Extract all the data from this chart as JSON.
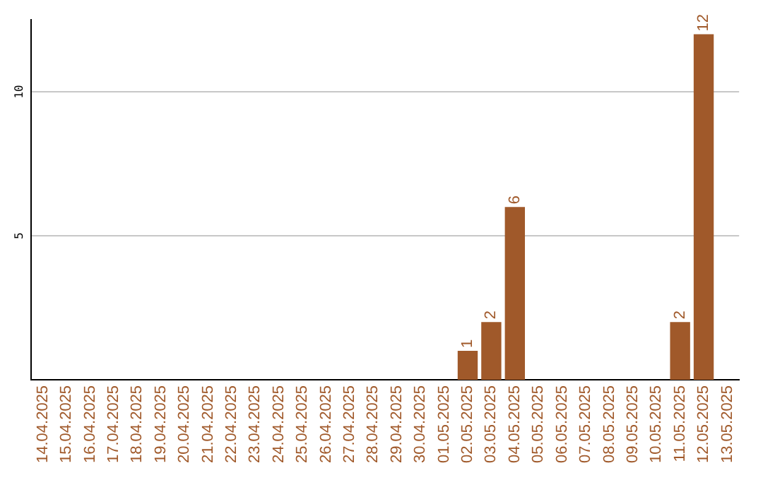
{
  "chart_data": {
    "type": "bar",
    "categories": [
      "14.04.2025",
      "15.04.2025",
      "16.04.2025",
      "17.04.2025",
      "18.04.2025",
      "19.04.2025",
      "20.04.2025",
      "21.04.2025",
      "22.04.2025",
      "23.04.2025",
      "24.04.2025",
      "25.04.2025",
      "26.04.2025",
      "27.04.2025",
      "28.04.2025",
      "29.04.2025",
      "30.04.2025",
      "01.05.2025",
      "02.05.2025",
      "03.05.2025",
      "04.05.2025",
      "05.05.2025",
      "06.05.2025",
      "07.05.2025",
      "08.05.2025",
      "09.05.2025",
      "10.05.2025",
      "11.05.2025",
      "12.05.2025",
      "13.05.2025"
    ],
    "values": [
      0,
      0,
      0,
      0,
      0,
      0,
      0,
      0,
      0,
      0,
      0,
      0,
      0,
      0,
      0,
      0,
      0,
      0,
      1,
      2,
      6,
      0,
      0,
      0,
      0,
      0,
      0,
      2,
      12,
      0
    ],
    "value_labels": [
      null,
      null,
      null,
      null,
      null,
      null,
      null,
      null,
      null,
      null,
      null,
      null,
      null,
      null,
      null,
      null,
      null,
      null,
      "1",
      "2",
      "6",
      null,
      null,
      null,
      null,
      null,
      null,
      "2",
      "12",
      null
    ],
    "color": "#a0592a",
    "ylim": [
      0,
      12.5
    ],
    "yticks": [
      5,
      10
    ],
    "grid": "y",
    "legend": false
  }
}
